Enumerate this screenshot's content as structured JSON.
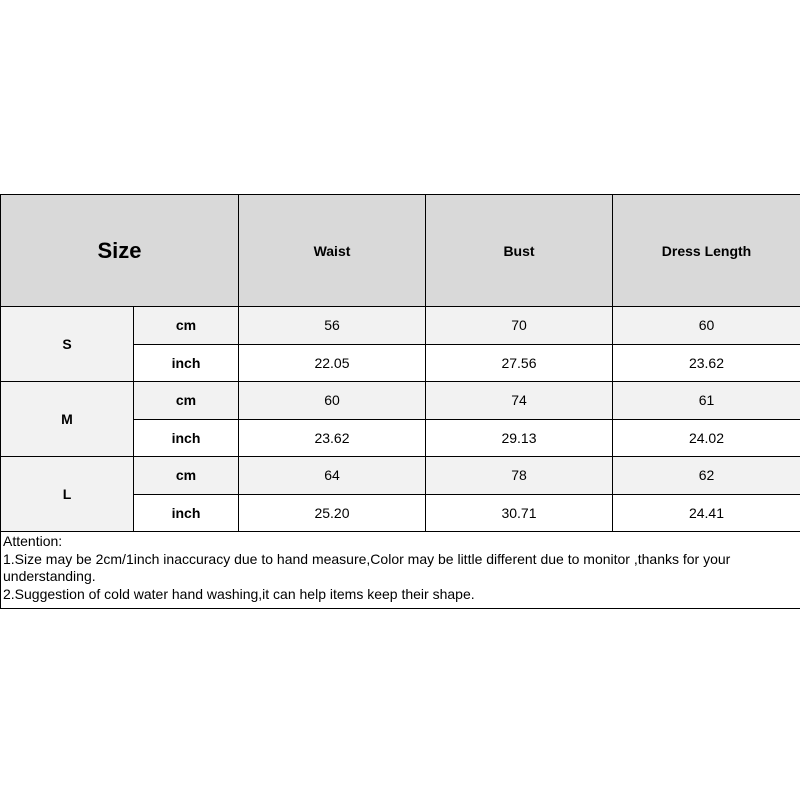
{
  "header": {
    "size": "Size",
    "columns": [
      "Waist",
      "Bust",
      "Dress Length"
    ]
  },
  "rows": [
    {
      "size": "S",
      "cm": {
        "unit": "cm",
        "values": [
          "56",
          "70",
          "60"
        ]
      },
      "inch": {
        "unit": "inch",
        "values": [
          "22.05",
          "27.56",
          "23.62"
        ]
      }
    },
    {
      "size": "M",
      "cm": {
        "unit": "cm",
        "values": [
          "60",
          "74",
          "61"
        ]
      },
      "inch": {
        "unit": "inch",
        "values": [
          "23.62",
          "29.13",
          "24.02"
        ]
      }
    },
    {
      "size": "L",
      "cm": {
        "unit": "cm",
        "values": [
          "64",
          "78",
          "62"
        ]
      },
      "inch": {
        "unit": "inch",
        "values": [
          "25.20",
          "30.71",
          "24.41"
        ]
      }
    }
  ],
  "notes": {
    "title": "Attention:",
    "line1": "1.Size may be 2cm/1inch inaccuracy due to hand measure,Color may be little different due to monitor ,thanks for your understanding.",
    "line2": "2.Suggestion of cold water hand washing,it can help items keep their shape."
  },
  "colors": {
    "header_bg": "#d9d9d9",
    "cm_row_bg": "#f2f2f2",
    "inch_row_bg": "#ffffff"
  }
}
